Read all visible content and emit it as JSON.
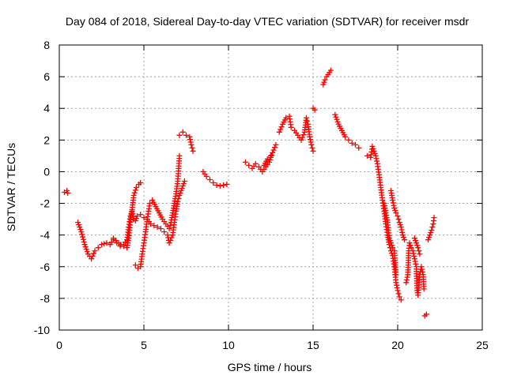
{
  "chart_data": {
    "type": "scatter",
    "title": "Day 084 of 2018, Sidereal Day-to-day VTEC variation (SDTVAR) for receiver msdr",
    "xlabel": "GPS time / hours",
    "ylabel": "SDTVAR / TECUs",
    "xlim": [
      0,
      25
    ],
    "ylim": [
      -10,
      8
    ],
    "x_ticks": [
      0,
      5,
      10,
      15,
      20,
      25
    ],
    "y_ticks": [
      -10,
      -8,
      -6,
      -4,
      -2,
      0,
      2,
      4,
      6,
      8
    ],
    "grid": true,
    "marker": "+",
    "marker_color": "#ff0000",
    "series": [
      {
        "name": "SDTVAR",
        "segments": [
          [
            [
              0.3,
              -1.3
            ],
            [
              0.45,
              -1.2
            ],
            [
              0.5,
              -1.35
            ]
          ],
          [
            [
              1.1,
              -3.2
            ],
            [
              1.3,
              -3.8
            ],
            [
              1.5,
              -4.6
            ],
            [
              1.7,
              -5.2
            ],
            [
              1.9,
              -5.5
            ],
            [
              2.1,
              -5.0
            ],
            [
              2.3,
              -4.8
            ],
            [
              2.5,
              -4.6
            ],
            [
              2.8,
              -4.5
            ],
            [
              3.0,
              -4.6
            ],
            [
              3.2,
              -4.3
            ],
            [
              3.4,
              -4.5
            ],
            [
              3.6,
              -4.7
            ],
            [
              3.8,
              -4.6
            ],
            [
              4.0,
              -4.3
            ],
            [
              4.1,
              -3.5
            ],
            [
              4.2,
              -2.8
            ],
            [
              4.3,
              -2.5
            ],
            [
              4.4,
              -3.0
            ],
            [
              4.5,
              -3.1
            ],
            [
              4.6,
              -2.8
            ],
            [
              4.8,
              -2.7
            ],
            [
              5.0,
              -2.9
            ],
            [
              5.2,
              -3.0
            ],
            [
              5.4,
              -3.3
            ],
            [
              5.6,
              -3.4
            ],
            [
              5.8,
              -3.5
            ],
            [
              6.0,
              -3.6
            ],
            [
              6.2,
              -3.8
            ],
            [
              6.4,
              -4.0
            ],
            [
              6.5,
              -4.5
            ],
            [
              6.7,
              -4.0
            ],
            [
              6.8,
              -3.2
            ],
            [
              6.9,
              -2.5
            ],
            [
              7.0,
              -1.9
            ],
            [
              7.1,
              -1.5
            ],
            [
              7.3,
              -0.9
            ],
            [
              7.4,
              -0.6
            ]
          ],
          [
            [
              3.2,
              -4.2
            ],
            [
              3.5,
              -4.5
            ],
            [
              3.8,
              -4.7
            ],
            [
              4.0,
              -4.8
            ],
            [
              4.1,
              -4.2
            ],
            [
              4.2,
              -3.2
            ],
            [
              4.3,
              -2.4
            ],
            [
              4.4,
              -1.5
            ],
            [
              4.55,
              -1.0
            ],
            [
              4.7,
              -0.8
            ],
            [
              4.8,
              -0.7
            ]
          ],
          [
            [
              4.5,
              -5.9
            ],
            [
              4.65,
              -6.1
            ],
            [
              4.8,
              -6.0
            ],
            [
              4.9,
              -5.2
            ],
            [
              5.0,
              -4.5
            ],
            [
              5.1,
              -3.8
            ],
            [
              5.2,
              -3.0
            ],
            [
              5.35,
              -2.0
            ],
            [
              5.5,
              -1.8
            ],
            [
              5.7,
              -2.2
            ],
            [
              5.9,
              -2.6
            ],
            [
              6.1,
              -3.0
            ],
            [
              6.3,
              -3.3
            ],
            [
              6.5,
              -3.6
            ],
            [
              6.6,
              -3.2
            ],
            [
              6.7,
              -2.6
            ],
            [
              6.8,
              -2.0
            ],
            [
              6.9,
              -1.4
            ],
            [
              7.0,
              -0.6
            ],
            [
              7.05,
              0.2
            ],
            [
              7.1,
              1.0
            ]
          ],
          [
            [
              7.1,
              2.3
            ],
            [
              7.3,
              2.5
            ],
            [
              7.5,
              2.3
            ],
            [
              7.7,
              2.2
            ],
            [
              7.8,
              1.7
            ],
            [
              7.9,
              1.3
            ]
          ],
          [
            [
              8.5,
              0.0
            ],
            [
              8.7,
              -0.3
            ],
            [
              8.9,
              -0.5
            ],
            [
              9.1,
              -0.7
            ],
            [
              9.3,
              -0.85
            ],
            [
              9.5,
              -0.9
            ],
            [
              9.7,
              -0.85
            ],
            [
              9.9,
              -0.8
            ]
          ],
          [
            [
              11.0,
              0.6
            ],
            [
              11.2,
              0.4
            ],
            [
              11.4,
              0.2
            ],
            [
              11.6,
              0.5
            ],
            [
              11.8,
              0.3
            ],
            [
              12.0,
              0.0
            ],
            [
              12.2,
              0.3
            ],
            [
              12.4,
              0.6
            ],
            [
              12.6,
              1.2
            ],
            [
              12.8,
              1.7
            ]
          ],
          [
            [
              12.1,
              0.4
            ],
            [
              12.3,
              0.8
            ],
            [
              12.5,
              1.0
            ]
          ],
          [
            [
              13.0,
              2.5
            ],
            [
              13.2,
              3.0
            ],
            [
              13.4,
              3.4
            ],
            [
              13.6,
              3.5
            ],
            [
              13.7,
              2.8
            ],
            [
              13.9,
              2.6
            ],
            [
              14.1,
              2.3
            ],
            [
              14.3,
              2.0
            ],
            [
              14.5,
              2.5
            ],
            [
              14.6,
              3.4
            ],
            [
              14.7,
              3.0
            ],
            [
              14.8,
              2.2
            ],
            [
              14.9,
              1.7
            ],
            [
              15.0,
              1.3
            ]
          ],
          [
            [
              15.0,
              4.0
            ],
            [
              15.1,
              3.9
            ]
          ],
          [
            [
              15.6,
              5.5
            ],
            [
              15.7,
              5.8
            ],
            [
              15.8,
              6.0
            ],
            [
              16.05,
              6.4
            ]
          ],
          [
            [
              16.3,
              3.6
            ],
            [
              16.5,
              3.0
            ],
            [
              16.7,
              2.6
            ],
            [
              16.9,
              2.2
            ],
            [
              17.1,
              2.0
            ],
            [
              17.3,
              1.8
            ],
            [
              17.5,
              1.7
            ],
            [
              17.7,
              1.5
            ]
          ],
          [
            [
              18.2,
              1.0
            ],
            [
              18.4,
              0.9
            ],
            [
              18.5,
              1.6
            ],
            [
              18.7,
              1.0
            ],
            [
              18.8,
              0.5
            ],
            [
              18.9,
              -0.2
            ],
            [
              19.0,
              -1.0
            ],
            [
              19.1,
              -1.8
            ],
            [
              19.2,
              -2.5
            ],
            [
              19.3,
              -3.3
            ],
            [
              19.4,
              -4.0
            ],
            [
              19.5,
              -4.6
            ],
            [
              19.6,
              -5.0
            ],
            [
              19.7,
              -5.3
            ],
            [
              19.8,
              -6.0
            ],
            [
              19.9,
              -7.0
            ],
            [
              20.0,
              -7.5
            ],
            [
              20.1,
              -7.9
            ],
            [
              20.2,
              -8.1
            ]
          ],
          [
            [
              19.2,
              -2.0
            ],
            [
              19.4,
              -3.2
            ],
            [
              19.5,
              -4.2
            ],
            [
              19.6,
              -4.5
            ],
            [
              19.7,
              -4.8
            ],
            [
              19.8,
              -5.0
            ],
            [
              19.9,
              -6.5
            ]
          ],
          [
            [
              19.6,
              -1.2
            ],
            [
              19.7,
              -1.8
            ],
            [
              19.8,
              -2.3
            ],
            [
              19.9,
              -2.6
            ],
            [
              20.0,
              -2.8
            ],
            [
              20.1,
              -3.2
            ],
            [
              20.2,
              -3.5
            ],
            [
              20.3,
              -4.0
            ],
            [
              20.4,
              -4.3
            ]
          ],
          [
            [
              20.5,
              -7.0
            ],
            [
              20.6,
              -6.5
            ],
            [
              20.65,
              -5.0
            ],
            [
              20.7,
              -4.5
            ],
            [
              20.8,
              -4.8
            ],
            [
              20.9,
              -5.0
            ],
            [
              21.0,
              -5.5
            ],
            [
              21.1,
              -6.0
            ],
            [
              21.15,
              -7.5
            ],
            [
              21.2,
              -7.8
            ],
            [
              21.3,
              -6.5
            ],
            [
              21.4,
              -6.0
            ],
            [
              21.5,
              -6.5
            ],
            [
              21.55,
              -7.4
            ]
          ],
          [
            [
              21.0,
              -4.2
            ],
            [
              21.1,
              -4.5
            ],
            [
              21.2,
              -4.8
            ],
            [
              21.3,
              -5.2
            ]
          ],
          [
            [
              21.6,
              -9.1
            ],
            [
              21.7,
              -9.0
            ]
          ],
          [
            [
              21.8,
              -4.3
            ],
            [
              21.9,
              -4.0
            ],
            [
              22.0,
              -3.7
            ],
            [
              22.1,
              -3.3
            ],
            [
              22.15,
              -2.9
            ]
          ]
        ]
      }
    ]
  }
}
